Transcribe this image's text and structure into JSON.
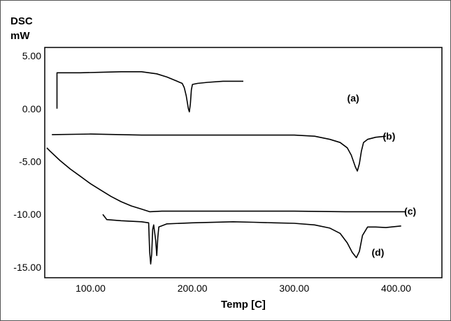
{
  "chart_data": {
    "type": "line",
    "title": "",
    "ylabel_lines": [
      "DSC",
      "mW"
    ],
    "xlabel": "Temp [C]",
    "xlim": [
      55,
      445
    ],
    "ylim": [
      -16,
      5.8
    ],
    "x_ticks": [
      100,
      200,
      300,
      400
    ],
    "x_tick_labels": [
      "100.00",
      "200.00",
      "300.00",
      "400.00"
    ],
    "y_ticks": [
      5,
      0,
      -5,
      -10,
      -15
    ],
    "y_tick_labels": [
      "5.00",
      "0.00",
      "-5.00",
      "-10.00",
      "-15.00"
    ],
    "grid": false,
    "legend": "none",
    "line_color": "#000000",
    "series": [
      {
        "name": "(a)",
        "label_at": [
          352,
          1.0
        ],
        "points": [
          [
            67,
            0.0
          ],
          [
            67,
            3.4
          ],
          [
            70,
            3.4
          ],
          [
            90,
            3.4
          ],
          [
            110,
            3.45
          ],
          [
            130,
            3.5
          ],
          [
            150,
            3.5
          ],
          [
            165,
            3.3
          ],
          [
            175,
            3.0
          ],
          [
            185,
            2.6
          ],
          [
            190,
            2.4
          ],
          [
            192,
            2.0
          ],
          [
            194,
            1.2
          ],
          [
            196,
            0.0
          ],
          [
            197,
            -0.3
          ],
          [
            198,
            0.5
          ],
          [
            199,
            1.8
          ],
          [
            200,
            2.3
          ],
          [
            205,
            2.4
          ],
          [
            215,
            2.5
          ],
          [
            230,
            2.6
          ],
          [
            250,
            2.6
          ]
        ]
      },
      {
        "name": "(b)",
        "label_at": [
          387,
          -2.6
        ],
        "points": [
          [
            62,
            -2.45
          ],
          [
            100,
            -2.4
          ],
          [
            150,
            -2.5
          ],
          [
            200,
            -2.5
          ],
          [
            250,
            -2.5
          ],
          [
            300,
            -2.5
          ],
          [
            320,
            -2.6
          ],
          [
            335,
            -2.9
          ],
          [
            345,
            -3.2
          ],
          [
            352,
            -3.7
          ],
          [
            356,
            -4.4
          ],
          [
            360,
            -5.5
          ],
          [
            362,
            -5.9
          ],
          [
            364,
            -5.2
          ],
          [
            366,
            -4.0
          ],
          [
            368,
            -3.2
          ],
          [
            372,
            -2.9
          ],
          [
            380,
            -2.7
          ],
          [
            390,
            -2.6
          ]
        ]
      },
      {
        "name": "(c)",
        "label_at": [
          408,
          -9.7
        ],
        "points": [
          [
            57,
            -3.7
          ],
          [
            60,
            -4.0
          ],
          [
            70,
            -4.9
          ],
          [
            80,
            -5.7
          ],
          [
            90,
            -6.4
          ],
          [
            100,
            -7.1
          ],
          [
            110,
            -7.7
          ],
          [
            120,
            -8.3
          ],
          [
            130,
            -8.8
          ],
          [
            140,
            -9.2
          ],
          [
            150,
            -9.5
          ],
          [
            158,
            -9.75
          ],
          [
            170,
            -9.7
          ],
          [
            200,
            -9.7
          ],
          [
            250,
            -9.7
          ],
          [
            300,
            -9.7
          ],
          [
            350,
            -9.75
          ],
          [
            400,
            -9.75
          ],
          [
            410,
            -9.75
          ]
        ]
      },
      {
        "name": "(d)",
        "label_at": [
          376,
          -13.6
        ],
        "points": [
          [
            112,
            -10.0
          ],
          [
            116,
            -10.5
          ],
          [
            130,
            -10.6
          ],
          [
            150,
            -10.7
          ],
          [
            157,
            -10.8
          ],
          [
            158,
            -13.5
          ],
          [
            159,
            -14.7
          ],
          [
            160,
            -13.8
          ],
          [
            161,
            -11.4
          ],
          [
            162,
            -11.0
          ],
          [
            164,
            -12.5
          ],
          [
            165,
            -13.9
          ],
          [
            166,
            -12.2
          ],
          [
            167,
            -11.2
          ],
          [
            175,
            -10.9
          ],
          [
            200,
            -10.8
          ],
          [
            240,
            -10.7
          ],
          [
            260,
            -10.75
          ],
          [
            280,
            -10.8
          ],
          [
            300,
            -10.85
          ],
          [
            320,
            -11.0
          ],
          [
            335,
            -11.3
          ],
          [
            345,
            -11.8
          ],
          [
            352,
            -12.7
          ],
          [
            357,
            -13.6
          ],
          [
            361,
            -14.1
          ],
          [
            364,
            -13.5
          ],
          [
            367,
            -12.0
          ],
          [
            372,
            -11.2
          ],
          [
            380,
            -11.2
          ],
          [
            390,
            -11.25
          ],
          [
            405,
            -11.1
          ]
        ]
      }
    ]
  }
}
